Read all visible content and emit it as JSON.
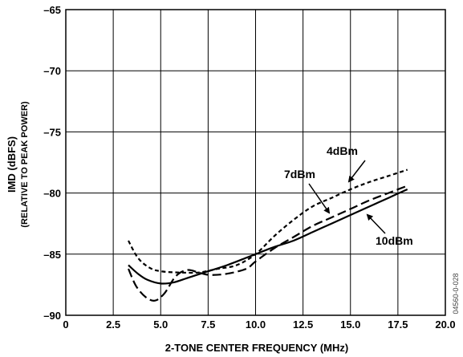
{
  "chart_data": {
    "type": "line",
    "title": "",
    "xlabel": "2-TONE CENTER FREQUENCY (MHz)",
    "ylabel": "IMD (dBFS)",
    "ylabel_sub": "(RELATIVE TO PEAK POWER)",
    "xlim": [
      0,
      20
    ],
    "ylim": [
      -90,
      -65
    ],
    "x_ticks": [
      "0",
      "2.5",
      "5.0",
      "7.5",
      "10.0",
      "12.5",
      "15.0",
      "17.5",
      "20.0"
    ],
    "y_ticks": [
      "–65",
      "–70",
      "–75",
      "–80",
      "–85",
      "–90"
    ],
    "grid": true,
    "series": [
      {
        "name": "4dBm",
        "style": "short-dash",
        "x": [
          3.3,
          3.8,
          4.4,
          5.0,
          6.0,
          7.0,
          8.0,
          9.0,
          10.0,
          11.0,
          12.0,
          13.0,
          14.0,
          15.0,
          16.0,
          17.0,
          18.0
        ],
        "y": [
          -83.9,
          -85.3,
          -86.1,
          -86.4,
          -86.5,
          -86.5,
          -86.2,
          -85.9,
          -85.0,
          -83.5,
          -82.2,
          -81.1,
          -80.4,
          -79.7,
          -79.1,
          -78.6,
          -78.1
        ]
      },
      {
        "name": "7dBm",
        "style": "long-dash",
        "x": [
          3.3,
          3.7,
          4.2,
          4.7,
          5.2,
          5.8,
          6.4,
          7.0,
          7.6,
          8.5,
          9.5,
          10.0,
          11.0,
          12.0,
          13.0,
          14.0,
          15.0,
          16.0,
          17.0,
          18.0
        ],
        "y": [
          -86.2,
          -87.6,
          -88.5,
          -88.8,
          -88.2,
          -86.8,
          -86.3,
          -86.5,
          -86.7,
          -86.6,
          -86.2,
          -85.6,
          -84.5,
          -83.6,
          -82.7,
          -82.0,
          -81.3,
          -80.6,
          -80.0,
          -79.4
        ]
      },
      {
        "name": "10dBm",
        "style": "solid",
        "x": [
          3.3,
          3.8,
          4.3,
          5.0,
          5.7,
          6.5,
          7.5,
          8.5,
          9.5,
          10.0,
          11.0,
          12.0,
          13.0,
          14.0,
          15.0,
          16.0,
          17.0,
          18.0
        ],
        "y": [
          -85.9,
          -86.6,
          -87.1,
          -87.4,
          -87.3,
          -86.9,
          -86.4,
          -85.9,
          -85.3,
          -85.0,
          -84.4,
          -83.9,
          -83.2,
          -82.5,
          -81.8,
          -81.1,
          -80.4,
          -79.7
        ]
      }
    ],
    "annotations": [
      "4dBm",
      "7dBm",
      "10dBm"
    ]
  },
  "figure_id": "04560-0-028"
}
